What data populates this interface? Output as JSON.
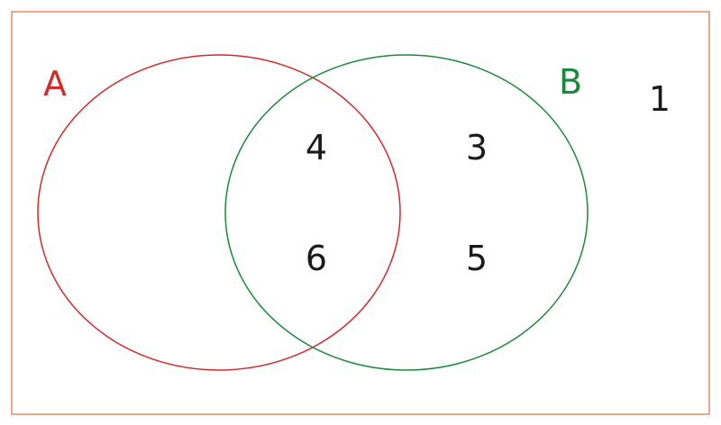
{
  "colors": {
    "universe_border": "#e8896a",
    "set_a": "#d42a2a",
    "set_b": "#1a8a3a",
    "text": "#1a1a1a"
  },
  "sets": {
    "a": {
      "label": "A"
    },
    "b": {
      "label": "B"
    }
  },
  "regions": {
    "intersection": [
      "4",
      "6"
    ],
    "b_only": [
      "3",
      "5"
    ],
    "outside": [
      "1"
    ]
  }
}
